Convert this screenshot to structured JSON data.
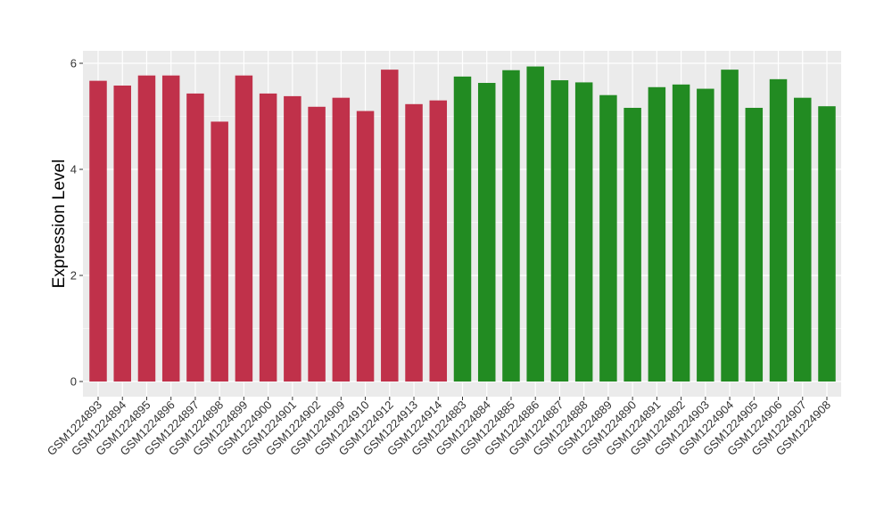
{
  "chart_data": {
    "type": "bar",
    "title": "",
    "xlabel": "",
    "ylabel": "Expression Level",
    "ylim": [
      0,
      6.2
    ],
    "yticks": [
      "0",
      "2",
      "4",
      "6"
    ],
    "grid": true,
    "legend": "none",
    "colors": {
      "group_a": "#c0314a",
      "group_b": "#228b22",
      "panel": "#ebebeb",
      "gridline": "#ffffff"
    },
    "categories": [
      "GSM1224893",
      "GSM1224894",
      "GSM1224895",
      "GSM1224896",
      "GSM1224897",
      "GSM1224898",
      "GSM1224899",
      "GSM1224900",
      "GSM1224901",
      "GSM1224902",
      "GSM1224909",
      "GSM1224910",
      "GSM1224912",
      "GSM1224913",
      "GSM1224914",
      "GSM1224883",
      "GSM1224884",
      "GSM1224885",
      "GSM1224886",
      "GSM1224887",
      "GSM1224888",
      "GSM1224889",
      "GSM1224890",
      "GSM1224891",
      "GSM1224892",
      "GSM1224903",
      "GSM1224904",
      "GSM1224905",
      "GSM1224906",
      "GSM1224907",
      "GSM1224908"
    ],
    "values": [
      5.67,
      5.58,
      5.77,
      5.77,
      5.43,
      4.9,
      5.77,
      5.43,
      5.38,
      5.18,
      5.35,
      5.1,
      5.88,
      5.23,
      5.3,
      5.75,
      5.63,
      5.87,
      5.94,
      5.68,
      5.64,
      5.4,
      5.16,
      5.55,
      5.6,
      5.52,
      5.88,
      5.16,
      5.7,
      5.35,
      5.19
    ],
    "groups": [
      "a",
      "a",
      "a",
      "a",
      "a",
      "a",
      "a",
      "a",
      "a",
      "a",
      "a",
      "a",
      "a",
      "a",
      "a",
      "b",
      "b",
      "b",
      "b",
      "b",
      "b",
      "b",
      "b",
      "b",
      "b",
      "b",
      "b",
      "b",
      "b",
      "b",
      "b"
    ]
  }
}
